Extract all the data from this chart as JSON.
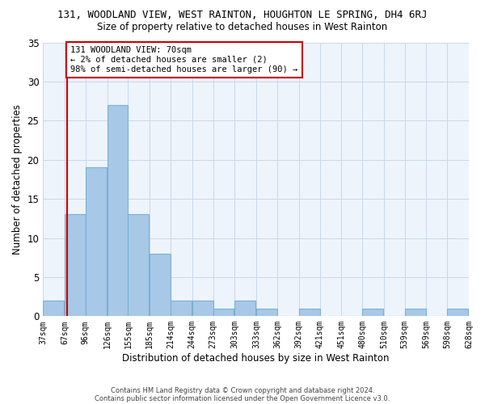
{
  "title1": "131, WOODLAND VIEW, WEST RAINTON, HOUGHTON LE SPRING, DH4 6RJ",
  "title2": "Size of property relative to detached houses in West Rainton",
  "xlabel": "Distribution of detached houses by size in West Rainton",
  "ylabel": "Number of detached properties",
  "bar_values": [
    2,
    13,
    19,
    27,
    13,
    8,
    2,
    2,
    1,
    2,
    1,
    0,
    1,
    0,
    0,
    1,
    0,
    1,
    0,
    1
  ],
  "bin_labels": [
    "37sqm",
    "67sqm",
    "96sqm",
    "126sqm",
    "155sqm",
    "185sqm",
    "214sqm",
    "244sqm",
    "273sqm",
    "303sqm",
    "333sqm",
    "362sqm",
    "392sqm",
    "421sqm",
    "451sqm",
    "480sqm",
    "510sqm",
    "539sqm",
    "569sqm",
    "598sqm",
    "628sqm"
  ],
  "bar_color": "#a8c8e8",
  "bar_edge_color": "#7ab0d0",
  "grid_color": "#c8d8ea",
  "bg_color": "#eef4fb",
  "vline_x": 70,
  "vline_color": "#cc0000",
  "annotation_text": "131 WOODLAND VIEW: 70sqm\n← 2% of detached houses are smaller (2)\n98% of semi-detached houses are larger (90) →",
  "annotation_box_color": "#cc0000",
  "footer1": "Contains HM Land Registry data © Crown copyright and database right 2024.",
  "footer2": "Contains public sector information licensed under the Open Government Licence v3.0.",
  "ylim": [
    0,
    35
  ],
  "bin_width": 29
}
